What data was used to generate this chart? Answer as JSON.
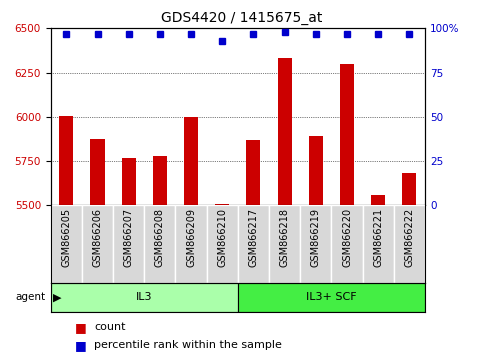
{
  "title": "GDS4420 / 1415675_at",
  "categories": [
    "GSM866205",
    "GSM866206",
    "GSM866207",
    "GSM866208",
    "GSM866209",
    "GSM866210",
    "GSM866217",
    "GSM866218",
    "GSM866219",
    "GSM866220",
    "GSM866221",
    "GSM866222"
  ],
  "bar_values": [
    6005,
    5875,
    5770,
    5780,
    6000,
    5510,
    5870,
    6330,
    5890,
    6300,
    5560,
    5680
  ],
  "percentile_values": [
    97,
    97,
    97,
    97,
    97,
    93,
    97,
    98,
    97,
    97,
    97,
    97
  ],
  "bar_color": "#cc0000",
  "percentile_color": "#0000cc",
  "ylim_left": [
    5500,
    6500
  ],
  "ylim_right": [
    0,
    100
  ],
  "yticks_left": [
    5500,
    5750,
    6000,
    6250,
    6500
  ],
  "yticks_right": [
    0,
    25,
    50,
    75,
    100
  ],
  "group1_label": "IL3",
  "group1_count": 6,
  "group1_color": "#aaffaa",
  "group2_label": "IL3+ SCF",
  "group2_count": 6,
  "group2_color": "#44ee44",
  "agent_label": "agent",
  "legend_count_label": "count",
  "legend_percentile_label": "percentile rank within the sample",
  "background_color": "#ffffff",
  "plot_bg_color": "#ffffff",
  "xticklabel_bg_color": "#d8d8d8",
  "title_fontsize": 10,
  "tick_label_fontsize": 7.5,
  "xticklabel_fontsize": 7,
  "group_fontsize": 8,
  "legend_fontsize": 8
}
